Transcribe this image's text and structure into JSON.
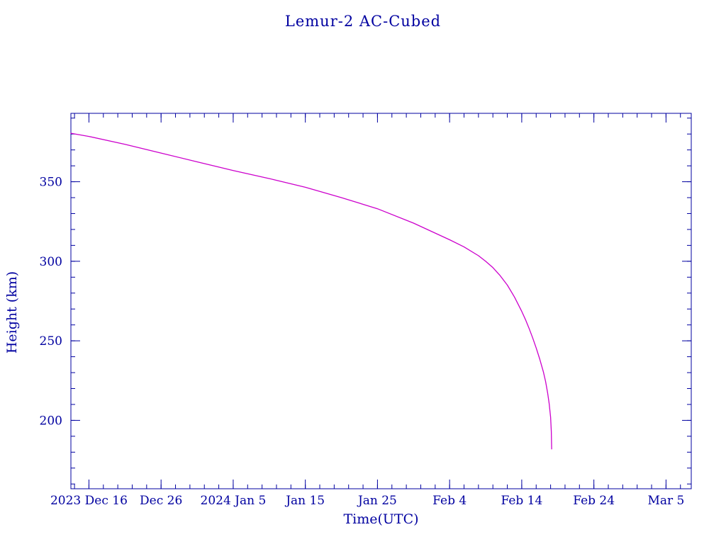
{
  "page": {
    "title": "Lemur-2 AC-Cubed",
    "xlabel": "Time(UTC)",
    "ylabel": "Height (km)"
  },
  "colors": {
    "axis": "#0000A0",
    "curve": "#CC00CC",
    "background": "#FFFFFF"
  },
  "chart_data": {
    "type": "line",
    "title": "Lemur-2 AC-Cubed",
    "xlabel": "Time(UTC)",
    "ylabel": "Height (km)",
    "x_unit": "days since 2023 Dec 16",
    "xlim": [
      -2.5,
      83.5
    ],
    "ylim": [
      157,
      393
    ],
    "grid": false,
    "legend": false,
    "x_ticks": [
      {
        "day": 0,
        "label": "2023 Dec 16"
      },
      {
        "day": 10,
        "label": "Dec 26"
      },
      {
        "day": 20,
        "label": "2024 Jan 5"
      },
      {
        "day": 30,
        "label": "Jan 15"
      },
      {
        "day": 40,
        "label": "Jan 25"
      },
      {
        "day": 50,
        "label": "Feb 4"
      },
      {
        "day": 60,
        "label": "Feb 14"
      },
      {
        "day": 70,
        "label": "Feb 24"
      },
      {
        "day": 80,
        "label": "Mar 5"
      }
    ],
    "x_minor_tick_step_days": 2,
    "y_ticks": [
      200,
      250,
      300,
      350
    ],
    "y_minor_tick_step": 10,
    "series": [
      {
        "name": "Lemur-2 AC-Cubed orbital height",
        "color": "#CC00CC",
        "points": [
          [
            -2.5,
            380.5
          ],
          [
            0,
            378.5
          ],
          [
            5,
            373.5
          ],
          [
            10,
            368
          ],
          [
            15,
            362.5
          ],
          [
            20,
            357
          ],
          [
            25,
            352
          ],
          [
            30,
            346.5
          ],
          [
            35,
            340
          ],
          [
            40,
            333
          ],
          [
            45,
            324
          ],
          [
            50,
            313.5
          ],
          [
            52,
            309
          ],
          [
            54,
            303.5
          ],
          [
            55,
            300
          ],
          [
            56,
            296
          ],
          [
            57,
            291
          ],
          [
            58,
            285
          ],
          [
            59,
            277.5
          ],
          [
            60,
            268.5
          ],
          [
            60.5,
            263.5
          ],
          [
            61,
            258
          ],
          [
            61.5,
            252
          ],
          [
            62,
            245.5
          ],
          [
            62.5,
            238.5
          ],
          [
            63,
            230.5
          ],
          [
            63.3,
            224.5
          ],
          [
            63.6,
            217
          ],
          [
            63.8,
            210.5
          ],
          [
            64,
            202
          ],
          [
            64.1,
            193
          ],
          [
            64.15,
            182
          ]
        ]
      }
    ]
  }
}
